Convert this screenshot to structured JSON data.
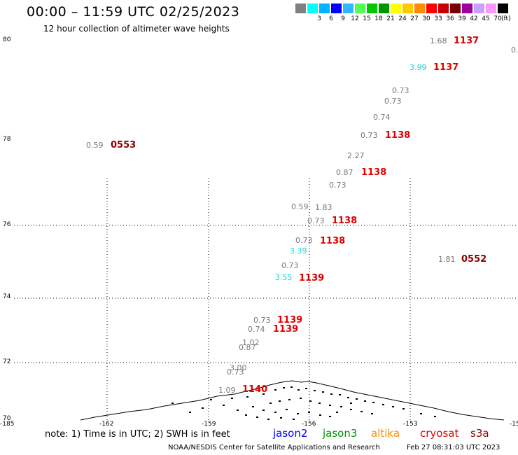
{
  "header": {
    "title": "00:00 – 11:59 UTC 02/25/2023",
    "subtitle": "12 hour collection of altimeter wave heights"
  },
  "legend": {
    "unit": "(ft)",
    "bins": [
      {
        "label": "",
        "color": "#808080"
      },
      {
        "label": "3",
        "color": "#00ffff"
      },
      {
        "label": "6",
        "color": "#00b4ff"
      },
      {
        "label": "9",
        "color": "#0000ff"
      },
      {
        "label": "12",
        "color": "#2fb7ff"
      },
      {
        "label": "15",
        "color": "#50ff50"
      },
      {
        "label": "18",
        "color": "#00c800"
      },
      {
        "label": "21",
        "color": "#009600"
      },
      {
        "label": "24",
        "color": "#ffff00"
      },
      {
        "label": "27",
        "color": "#ffc800"
      },
      {
        "label": "30",
        "color": "#ff8c00"
      },
      {
        "label": "33",
        "color": "#ff0000"
      },
      {
        "label": "36",
        "color": "#c80000"
      },
      {
        "label": "39",
        "color": "#780000"
      },
      {
        "label": "42",
        "color": "#a000a0"
      },
      {
        "label": "45",
        "color": "#c8a0ff"
      },
      {
        "label": "70",
        "color": "#ff96ff"
      },
      {
        "label": "",
        "color": "#000000"
      }
    ]
  },
  "map": {
    "lat_labels": [
      "80",
      "78",
      "76",
      "74",
      "72",
      "70"
    ],
    "lon_labels": [
      "-185",
      "-162",
      "-159",
      "-156",
      "-153",
      "-15"
    ],
    "observations": [
      {
        "value": "1.68",
        "color": "gray"
      },
      {
        "value": "0.",
        "color": "gray"
      },
      {
        "value": "3.99",
        "color": "cyan"
      },
      {
        "value": "0.73",
        "color": "gray"
      },
      {
        "value": "0.73",
        "color": "gray"
      },
      {
        "value": "0.74",
        "color": "gray"
      },
      {
        "value": "0.73",
        "color": "gray"
      },
      {
        "value": "0.59",
        "color": "gray"
      },
      {
        "value": "2.27",
        "color": "gray"
      },
      {
        "value": "0.87",
        "color": "gray"
      },
      {
        "value": "0.73",
        "color": "gray"
      },
      {
        "value": "0.59",
        "color": "gray"
      },
      {
        "value": "1.83",
        "color": "gray"
      },
      {
        "value": "0.73",
        "color": "gray"
      },
      {
        "value": "0.73",
        "color": "gray"
      },
      {
        "value": "3.39",
        "color": "cyan"
      },
      {
        "value": "1.81",
        "color": "gray"
      },
      {
        "value": "0.73",
        "color": "gray"
      },
      {
        "value": "3.55",
        "color": "cyan"
      },
      {
        "value": "0.73",
        "color": "gray"
      },
      {
        "value": "0.74",
        "color": "gray"
      },
      {
        "value": "1.02",
        "color": "gray"
      },
      {
        "value": "0.87",
        "color": "gray"
      },
      {
        "value": "3.00",
        "color": "gray"
      },
      {
        "value": "0.73",
        "color": "gray"
      },
      {
        "value": "1.09",
        "color": "gray"
      }
    ],
    "pass_times": [
      {
        "time": "1137",
        "color": "red"
      },
      {
        "time": "1137",
        "color": "red"
      },
      {
        "time": "0553",
        "color": "dkred"
      },
      {
        "time": "1138",
        "color": "red"
      },
      {
        "time": "1138",
        "color": "red"
      },
      {
        "time": "1138",
        "color": "red"
      },
      {
        "time": "1138",
        "color": "red"
      },
      {
        "time": "0552",
        "color": "dkred"
      },
      {
        "time": "1139",
        "color": "red"
      },
      {
        "time": "1139",
        "color": "red"
      },
      {
        "time": "1139",
        "color": "red"
      },
      {
        "time": "1140",
        "color": "red"
      }
    ]
  },
  "footer": {
    "note": "note: 1) Time is in UTC; 2) SWH is in feet",
    "satellites": [
      {
        "name": "jason2",
        "color": "#0000ff"
      },
      {
        "name": "jason3",
        "color": "#009600"
      },
      {
        "name": "altika",
        "color": "#ff8c00"
      },
      {
        "name": "cryosat",
        "color": "#e00000"
      },
      {
        "name": "s3a",
        "color": "#8b0000"
      }
    ],
    "credit": "NOAA/NESDIS Center for Satellite Applications and Research",
    "timestamp": "Feb 27 08:31:03 UTC 2023"
  }
}
